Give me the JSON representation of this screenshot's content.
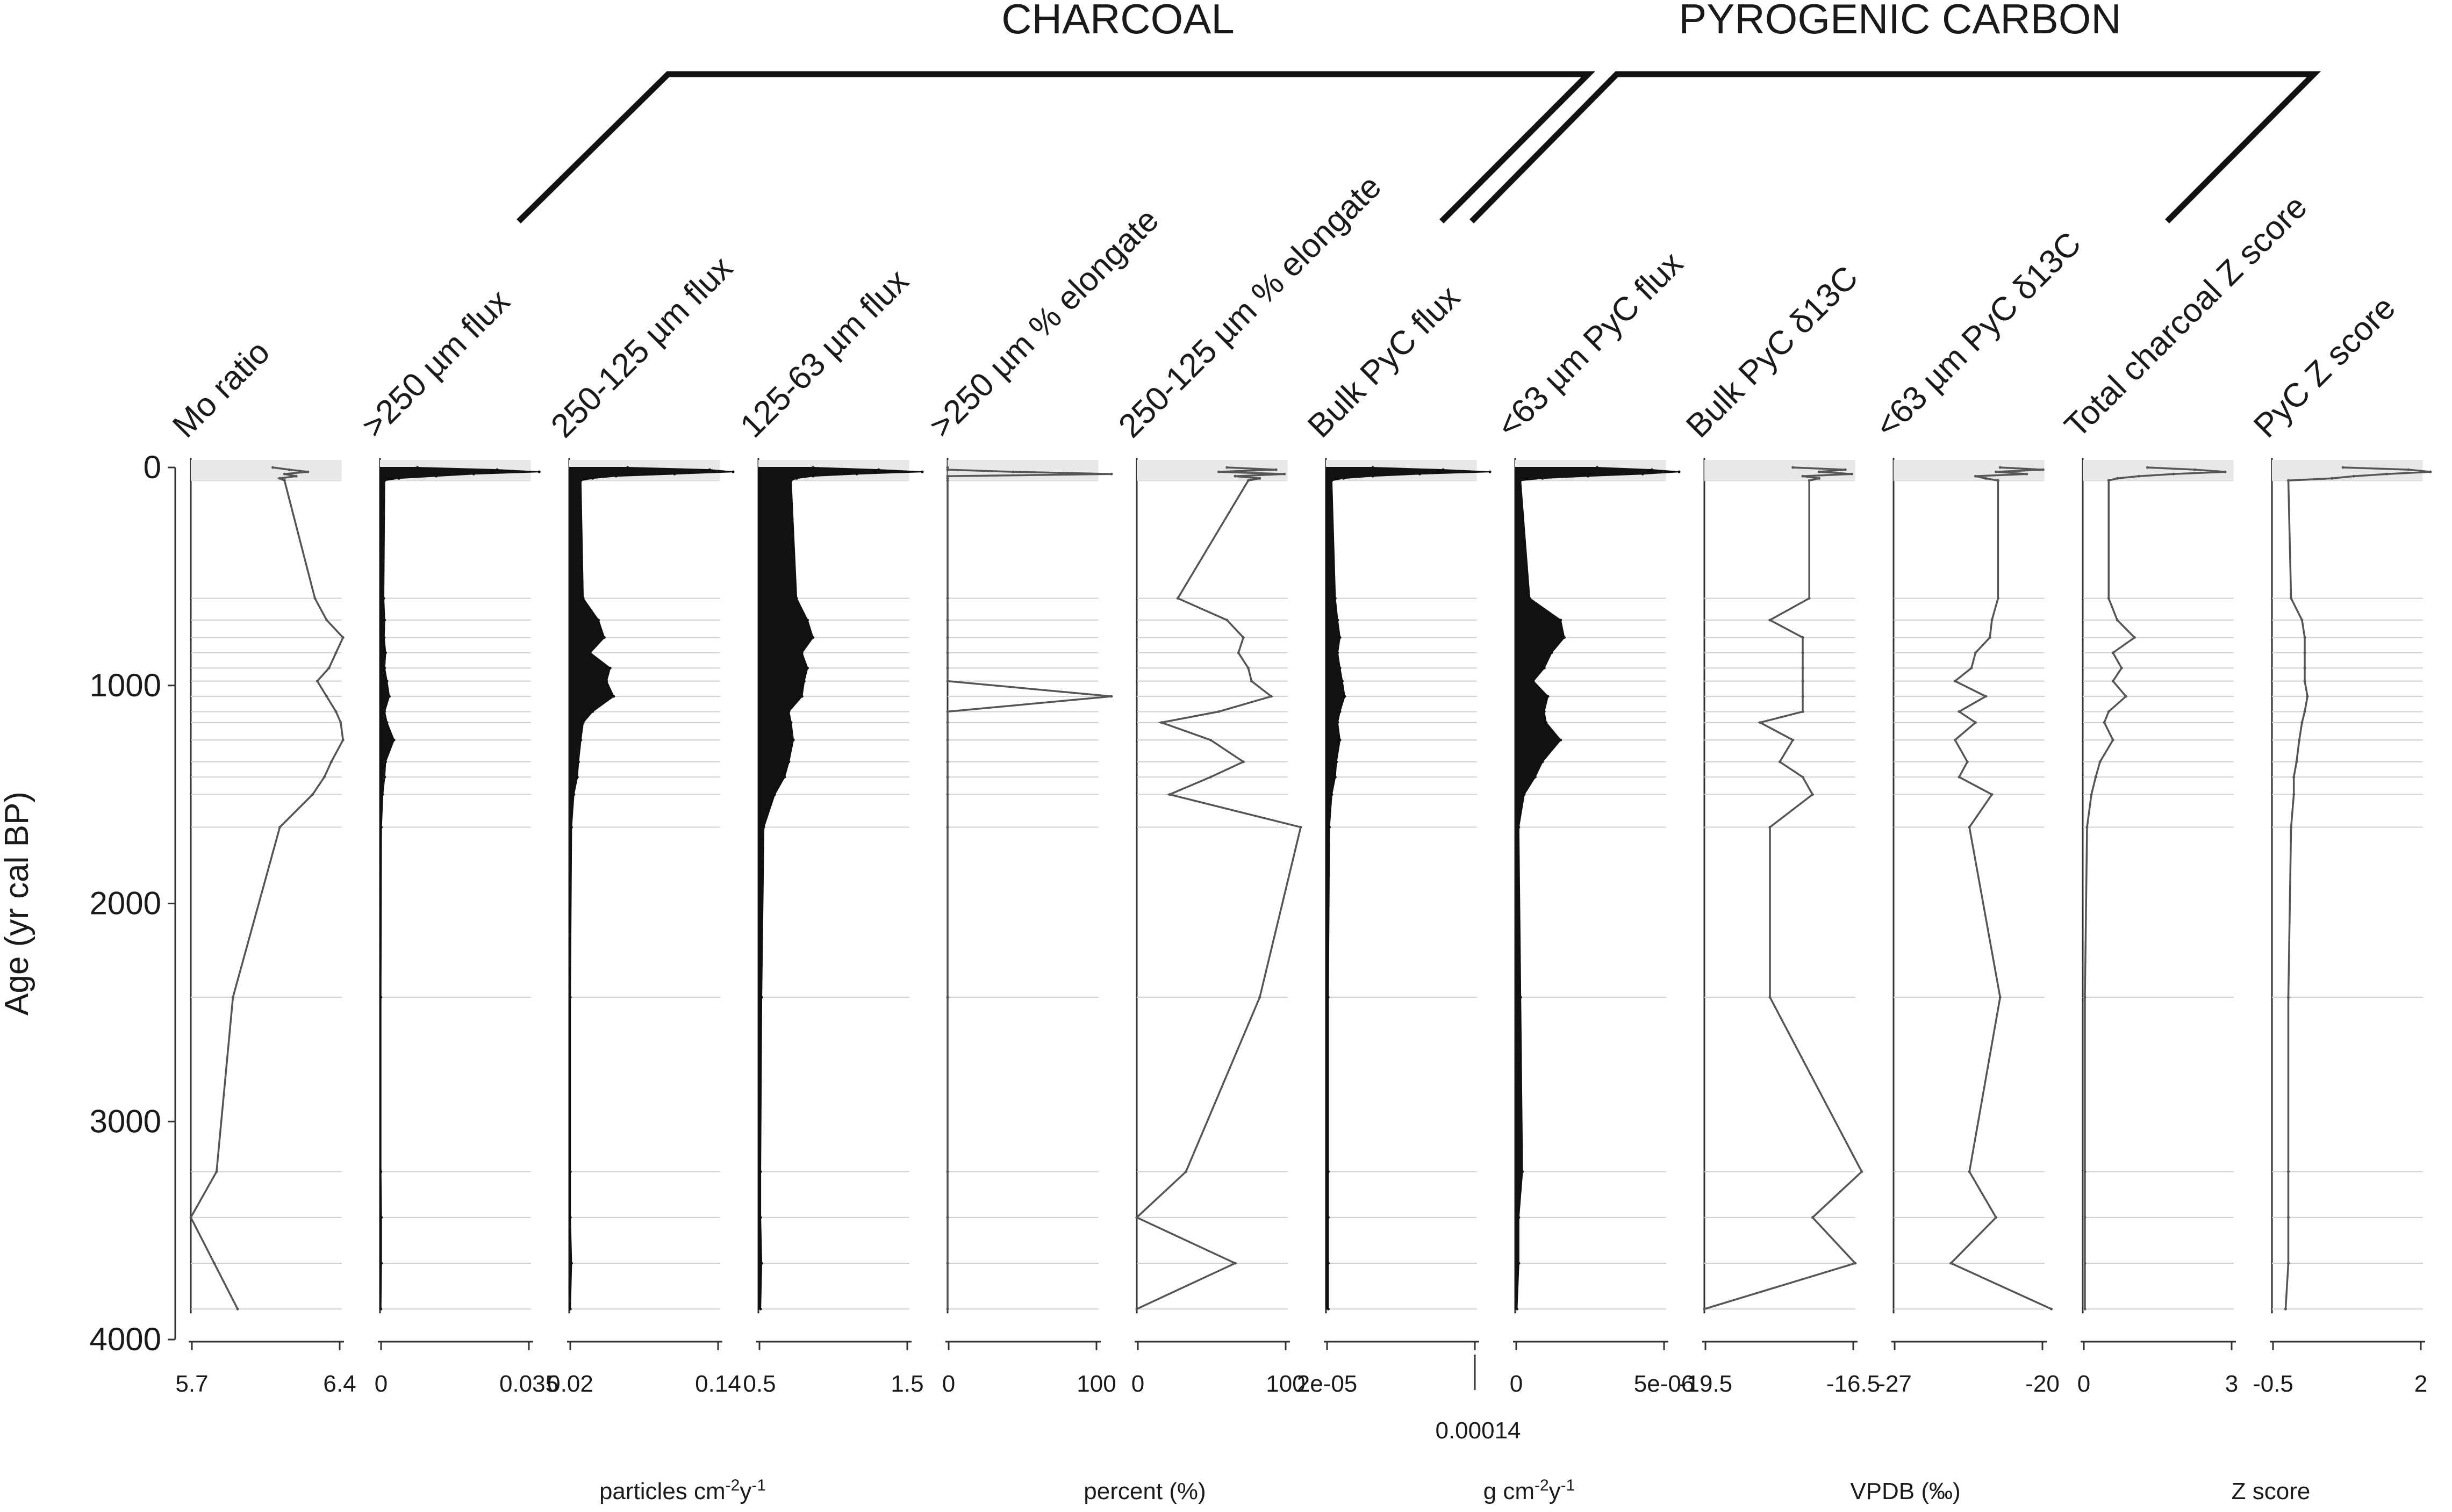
{
  "chart_data": {
    "type": "area",
    "title": "",
    "group_labels": [
      {
        "id": "charcoal",
        "text": "CHARCOAL"
      },
      {
        "id": "pyc",
        "text": "PYROGENIC CARBON"
      }
    ],
    "ylabel": "Age (yr cal BP)",
    "ylim": [
      0,
      4000
    ],
    "y_reversed": true,
    "yticks": [
      0,
      1000,
      2000,
      3000,
      4000
    ],
    "sample_ages": [
      0,
      10,
      20,
      30,
      40,
      50,
      60,
      600,
      700,
      780,
      850,
      920,
      980,
      1050,
      1120,
      1170,
      1250,
      1350,
      1420,
      1500,
      1650,
      2430,
      3230,
      3440,
      3650,
      3860
    ],
    "units": [
      {
        "id": "particles",
        "text": "particles cm-2y-1"
      },
      {
        "id": "percent",
        "text": "percent (%)"
      },
      {
        "id": "gcm",
        "text": "g cm-2y-1"
      },
      {
        "id": "vpdb",
        "text": "VPDB (‰)"
      },
      {
        "id": "z",
        "text": "Z score"
      }
    ],
    "panels": [
      {
        "id": "mo",
        "title": "Mo ratio",
        "style": "line",
        "xlim": [
          5.7,
          6.4
        ],
        "xticks": [
          "5.7",
          "6.4"
        ],
        "values": [
          6.05,
          6.12,
          6.2,
          6.1,
          6.15,
          6.08,
          6.1,
          6.23,
          6.28,
          6.35,
          6.32,
          6.29,
          6.24,
          6.28,
          6.32,
          6.34,
          6.35,
          6.3,
          6.27,
          6.22,
          6.08,
          5.88,
          5.81,
          5.7,
          5.8,
          5.9
        ]
      },
      {
        "id": "f250",
        "title": ">250 µm flux",
        "style": "fill",
        "xlim": [
          0,
          0.035
        ],
        "xticks": [
          "0",
          "0.035"
        ],
        "values": [
          0.008,
          0.025,
          0.034,
          0.02,
          0.012,
          0.004,
          0.001,
          0.0008,
          0.001,
          0.0009,
          0.0012,
          0.001,
          0.0015,
          0.002,
          0.001,
          0.0015,
          0.003,
          0.0012,
          0.001,
          0.0006,
          0.0003,
          0.0002,
          0.0002,
          0.0003,
          0.0003,
          0.0002
        ]
      },
      {
        "id": "f125",
        "title": "250-125 µm flux",
        "style": "fill",
        "xlim": [
          0.0,
          0.14
        ],
        "xticks": [
          "0.02",
          "0.14"
        ],
        "values": [
          0.05,
          0.12,
          0.14,
          0.09,
          0.04,
          0.02,
          0.01,
          0.012,
          0.025,
          0.03,
          0.018,
          0.035,
          0.032,
          0.038,
          0.02,
          0.012,
          0.01,
          0.008,
          0.007,
          0.004,
          0.002,
          0.001,
          0.001,
          0.001,
          0.002,
          0.001
        ]
      },
      {
        "id": "f63",
        "title": "125-63 µm flux",
        "style": "fill",
        "xlim": [
          0,
          1.5
        ],
        "xticks": [
          "0.5",
          "1.5"
        ],
        "values": [
          0.5,
          1.1,
          1.5,
          0.9,
          0.5,
          0.35,
          0.3,
          0.35,
          0.45,
          0.5,
          0.4,
          0.45,
          0.42,
          0.4,
          0.28,
          0.3,
          0.32,
          0.28,
          0.24,
          0.15,
          0.05,
          0.03,
          0.02,
          0.02,
          0.03,
          0.02
        ]
      },
      {
        "id": "e250",
        "title": ">250 µm % elongate",
        "style": "line",
        "xlim": [
          0,
          100
        ],
        "xticks": [
          "0",
          "100"
        ],
        "values": [
          0,
          0,
          40,
          100,
          0,
          0,
          0,
          0,
          0,
          0,
          0,
          0,
          0,
          100,
          0,
          0,
          0,
          0,
          0,
          0,
          0,
          0,
          0,
          0,
          0,
          0
        ]
      },
      {
        "id": "e125",
        "title": "250-125 µm % elongate",
        "style": "line",
        "xlim": [
          0,
          100
        ],
        "xticks": [
          "0",
          "100"
        ],
        "values": [
          55,
          85,
          50,
          90,
          60,
          75,
          68,
          25,
          55,
          65,
          62,
          68,
          70,
          82,
          50,
          15,
          45,
          65,
          45,
          20,
          100,
          75,
          30,
          0,
          60,
          0
        ]
      },
      {
        "id": "bpyc",
        "title": "Bulk PyC flux",
        "style": "fill",
        "xlim": [
          0,
          0.00014
        ],
        "xticks": [
          "2e-05",
          "0.00014"
        ],
        "values": [
          4e-05,
          0.0001,
          0.00014,
          8e-05,
          4e-05,
          1.5e-05,
          5e-06,
          8e-06,
          1e-05,
          1.2e-05,
          1e-05,
          1.2e-05,
          1.4e-05,
          1.6e-05,
          1.2e-05,
          1e-05,
          1.2e-05,
          9e-06,
          8e-06,
          5e-06,
          3e-06,
          2e-06,
          2e-06,
          2e-06,
          2e-06,
          2e-06
        ]
      },
      {
        "id": "p63",
        "title": "<63 µm PyC flux",
        "style": "fill",
        "xlim": [
          0,
          9e-06
        ],
        "xticks": [
          "0",
          "5e-06"
        ],
        "values": [
          4.5e-06,
          7.5e-06,
          9e-06,
          7e-06,
          4e-06,
          1.5e-06,
          3e-07,
          8e-07,
          2.5e-06,
          2.7e-06,
          2e-06,
          1.6e-06,
          1e-06,
          1.8e-06,
          1.6e-06,
          1.7e-06,
          2.5e-06,
          1.5e-06,
          1.1e-06,
          5e-07,
          2e-07,
          3e-07,
          4e-07,
          2e-07,
          2e-07,
          1e-07
        ]
      },
      {
        "id": "bd13",
        "title": "Bulk PyC δ13C",
        "style": "line",
        "xlim": [
          -20.5,
          -15.5
        ],
        "xticks": [
          "-19.5",
          "-16.5"
        ],
        "values": [
          -17.8,
          -16.2,
          -17.0,
          -16.0,
          -17.5,
          -17.0,
          -17.3,
          -17.3,
          -18.5,
          -17.5,
          -17.5,
          -17.5,
          -17.5,
          -17.5,
          -17.5,
          -18.8,
          -17.8,
          -18.2,
          -17.5,
          -17.2,
          -18.5,
          -18.5,
          -15.7,
          -17.2,
          -15.9,
          -20.5
        ]
      },
      {
        "id": "p13",
        "title": "<63 µm PyC δ13C",
        "style": "line",
        "xlim": [
          -28,
          -20
        ],
        "xticks": [
          "-27",
          "-20"
        ],
        "values": [
          -22.8,
          -20.7,
          -23.0,
          -21.5,
          -24.0,
          -23.5,
          -22.9,
          -22.9,
          -23.2,
          -23.3,
          -24.0,
          -24.2,
          -25.0,
          -23.5,
          -24.8,
          -24.0,
          -25.0,
          -24.4,
          -24.8,
          -23.2,
          -24.3,
          -22.8,
          -24.3,
          -23.0,
          -25.2,
          -20.3
        ]
      },
      {
        "id": "tz",
        "title": "Total charcoal Z score",
        "style": "line",
        "xlim": [
          -0.3,
          3.5
        ],
        "xticks": [
          "0",
          "3"
        ],
        "values": [
          1.2,
          2.3,
          3.0,
          1.8,
          1.0,
          0.5,
          0.3,
          0.3,
          0.5,
          0.9,
          0.4,
          0.6,
          0.4,
          0.7,
          0.3,
          0.2,
          0.4,
          0.1,
          0.0,
          -0.1,
          -0.2,
          -0.25,
          -0.25,
          -0.25,
          -0.25,
          -0.25
        ]
      },
      {
        "id": "pz",
        "title": "PyC Z score",
        "style": "line",
        "xlim": [
          -0.9,
          2.1
        ],
        "xticks": [
          "-0.5",
          "2"
        ],
        "values": [
          0.4,
          1.6,
          2.0,
          1.2,
          0.6,
          0.2,
          -0.6,
          -0.55,
          -0.35,
          -0.3,
          -0.3,
          -0.3,
          -0.3,
          -0.25,
          -0.3,
          -0.35,
          -0.4,
          -0.45,
          -0.5,
          -0.5,
          -0.55,
          -0.6,
          -0.6,
          -0.6,
          -0.6,
          -0.65
        ]
      }
    ]
  }
}
